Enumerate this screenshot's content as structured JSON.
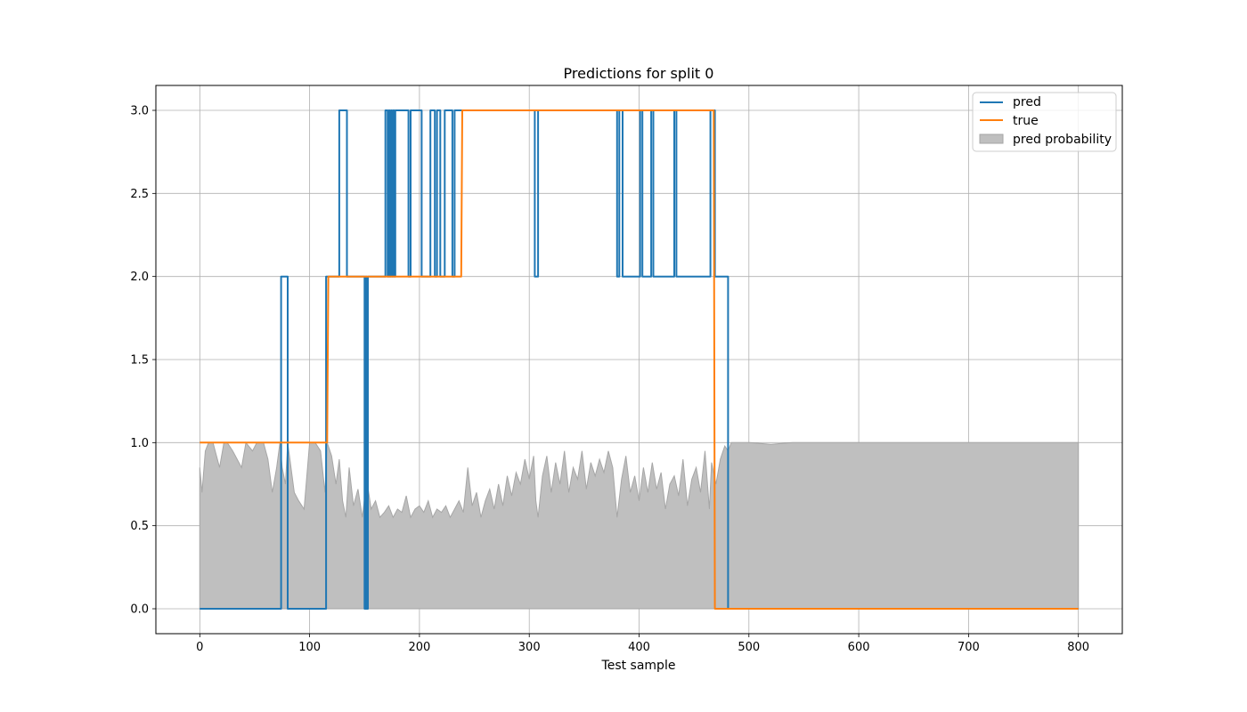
{
  "chart_data": {
    "type": "line",
    "title": "Predictions for split 0",
    "xlabel": "Test sample",
    "ylabel": "",
    "xlim": [
      -40,
      840
    ],
    "ylim": [
      -0.15,
      3.15
    ],
    "xticks": [
      0,
      100,
      200,
      300,
      400,
      500,
      600,
      700,
      800
    ],
    "yticks": [
      0.0,
      0.5,
      1.0,
      1.5,
      2.0,
      2.5,
      3.0
    ],
    "xtick_labels": [
      "0",
      "100",
      "200",
      "300",
      "400",
      "500",
      "600",
      "700",
      "800"
    ],
    "ytick_labels": [
      "0.0",
      "0.5",
      "1.0",
      "1.5",
      "2.0",
      "2.5",
      "3.0"
    ],
    "grid": true,
    "legend": {
      "position": "top-right",
      "entries": [
        "pred",
        "true",
        "pred probability"
      ]
    },
    "colors": {
      "pred": "#1f77b4",
      "true": "#ff7f0e",
      "probability": "#bfbfbf",
      "probability_edge": "#a6a6a6",
      "grid": "#b0b0b0"
    },
    "series": [
      {
        "name": "pred",
        "kind": "step",
        "x": [
          0,
          74,
          74,
          80,
          80,
          115,
          115,
          127,
          127,
          134,
          134,
          150,
          150,
          151,
          151,
          152,
          152,
          153,
          153,
          154,
          154,
          169,
          169,
          171,
          171,
          172,
          172,
          173,
          173,
          174,
          174,
          175,
          175,
          176,
          176,
          177,
          177,
          178,
          178,
          190,
          190,
          192,
          192,
          202,
          202,
          210,
          210,
          214,
          214,
          216,
          216,
          219,
          219,
          223,
          223,
          230,
          230,
          232,
          232,
          305,
          305,
          308,
          308,
          380,
          380,
          382,
          382,
          385,
          385,
          401,
          401,
          403,
          403,
          411,
          411,
          413,
          413,
          432,
          432,
          434,
          434,
          465,
          465,
          469,
          469,
          481,
          481,
          800
        ],
        "y": [
          0,
          0,
          2,
          2,
          0,
          0,
          2,
          2,
          3,
          3,
          2,
          2,
          0,
          0,
          2,
          2,
          0,
          0,
          2,
          2,
          2,
          2,
          3,
          3,
          2,
          2,
          3,
          3,
          2,
          2,
          3,
          3,
          2,
          2,
          3,
          3,
          2,
          2,
          3,
          3,
          2,
          2,
          3,
          3,
          2,
          2,
          3,
          3,
          2,
          2,
          3,
          3,
          2,
          2,
          3,
          3,
          2,
          2,
          3,
          3,
          2,
          2,
          3,
          3,
          2,
          2,
          3,
          3,
          2,
          2,
          3,
          3,
          2,
          2,
          3,
          3,
          2,
          2,
          3,
          3,
          2,
          2,
          3,
          3,
          2,
          2,
          0,
          0
        ]
      },
      {
        "name": "true",
        "kind": "step",
        "x": [
          0,
          116,
          117,
          238,
          239,
          468,
          469,
          800
        ],
        "y": [
          1,
          1,
          2,
          2,
          3,
          3,
          0,
          0
        ]
      },
      {
        "name": "pred probability",
        "kind": "area",
        "x": [
          0,
          2,
          5,
          8,
          12,
          18,
          22,
          25,
          30,
          38,
          42,
          48,
          52,
          58,
          62,
          66,
          70,
          73,
          75,
          78,
          80,
          83,
          86,
          90,
          95,
          100,
          105,
          110,
          114,
          116,
          120,
          124,
          127,
          130,
          133,
          136,
          140,
          144,
          148,
          152,
          156,
          160,
          164,
          168,
          172,
          176,
          180,
          184,
          188,
          192,
          196,
          200,
          204,
          208,
          212,
          216,
          220,
          224,
          228,
          232,
          236,
          240,
          244,
          248,
          252,
          256,
          260,
          264,
          268,
          272,
          276,
          280,
          284,
          288,
          292,
          296,
          300,
          304,
          306,
          308,
          312,
          316,
          320,
          324,
          328,
          332,
          336,
          340,
          344,
          348,
          352,
          356,
          360,
          364,
          368,
          372,
          376,
          380,
          384,
          388,
          392,
          396,
          400,
          404,
          408,
          412,
          416,
          420,
          424,
          428,
          432,
          436,
          440,
          444,
          448,
          452,
          456,
          460,
          464,
          466,
          470,
          474,
          478,
          481,
          484,
          490,
          500,
          520,
          540,
          560,
          600,
          700,
          800
        ],
        "y": [
          0.85,
          0.7,
          0.95,
          1.0,
          1.0,
          0.85,
          1.0,
          1.0,
          0.95,
          0.85,
          1.0,
          0.95,
          1.0,
          1.0,
          0.9,
          0.7,
          0.85,
          1.0,
          0.85,
          0.75,
          1.0,
          0.85,
          0.7,
          0.65,
          0.6,
          1.0,
          1.0,
          0.95,
          0.7,
          1.0,
          0.92,
          0.75,
          0.9,
          0.65,
          0.55,
          0.85,
          0.62,
          0.72,
          0.55,
          0.78,
          0.6,
          0.65,
          0.55,
          0.58,
          0.62,
          0.55,
          0.6,
          0.58,
          0.68,
          0.55,
          0.6,
          0.62,
          0.58,
          0.65,
          0.55,
          0.6,
          0.58,
          0.62,
          0.55,
          0.6,
          0.65,
          0.58,
          0.85,
          0.62,
          0.7,
          0.55,
          0.65,
          0.72,
          0.6,
          0.75,
          0.62,
          0.8,
          0.68,
          0.82,
          0.75,
          0.9,
          0.78,
          0.92,
          0.65,
          0.55,
          0.8,
          0.92,
          0.7,
          0.88,
          0.75,
          0.95,
          0.7,
          0.85,
          0.78,
          0.95,
          0.72,
          0.88,
          0.8,
          0.9,
          0.82,
          0.95,
          0.85,
          0.55,
          0.78,
          0.92,
          0.7,
          0.8,
          0.65,
          0.85,
          0.7,
          0.88,
          0.72,
          0.82,
          0.6,
          0.75,
          0.8,
          0.68,
          0.9,
          0.62,
          0.78,
          0.85,
          0.7,
          0.95,
          0.6,
          0.88,
          0.75,
          0.9,
          0.98,
          0.95,
          1.0,
          1.0,
          1.0,
          0.99,
          1.0,
          1.0,
          1.0,
          1.0,
          1.0
        ]
      }
    ]
  }
}
